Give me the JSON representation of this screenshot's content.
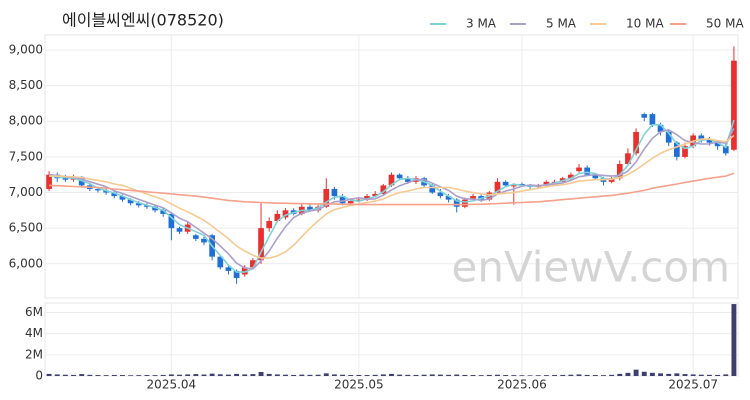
{
  "chart_data": {
    "type": "candlestick",
    "title": "에이블씨엔씨(078520)",
    "watermark": "enViewV.com",
    "categories": [
      null,
      null,
      null,
      null,
      null,
      null,
      null,
      null,
      null,
      null,
      null,
      null,
      null,
      null,
      null,
      "2025.04",
      null,
      null,
      null,
      null,
      null,
      null,
      null,
      null,
      null,
      null,
      null,
      null,
      null,
      null,
      null,
      null,
      null,
      null,
      null,
      null,
      null,
      null,
      "2025.05",
      null,
      null,
      null,
      null,
      null,
      null,
      null,
      null,
      null,
      null,
      null,
      null,
      null,
      null,
      null,
      null,
      null,
      null,
      null,
      "2025.06",
      null,
      null,
      null,
      null,
      null,
      null,
      null,
      null,
      null,
      null,
      null,
      null,
      null,
      null,
      null,
      null,
      null,
      null,
      null,
      null,
      "2025.07",
      null,
      null,
      null,
      null,
      null
    ],
    "open": [
      7050,
      7250,
      7200,
      7180,
      7220,
      7100,
      7050,
      7030,
      7000,
      6950,
      6900,
      6850,
      6820,
      6800,
      6750,
      6700,
      6500,
      6450,
      6400,
      6350,
      6400,
      6100,
      5950,
      5900,
      5850,
      5950,
      6050,
      6500,
      6600,
      6650,
      6750,
      6700,
      6800,
      6750,
      6800,
      7050,
      6950,
      6850,
      6880,
      6900,
      6950,
      6980,
      7100,
      7250,
      7200,
      7150,
      7200,
      7100,
      7000,
      6950,
      6900,
      6800,
      6900,
      6950,
      6900,
      7000,
      7150,
      7100,
      7120,
      7100,
      7080,
      7100,
      7150,
      7150,
      7200,
      7300,
      7350,
      7250,
      7200,
      7150,
      7200,
      7400,
      7550,
      8100,
      8100,
      7950,
      7850,
      7700,
      7500,
      7650,
      7800,
      7750,
      7700,
      7650,
      7600
    ],
    "high": [
      7300,
      7280,
      7250,
      7250,
      7230,
      7120,
      7080,
      7060,
      7020,
      6970,
      6920,
      6880,
      6850,
      6820,
      6780,
      6720,
      6520,
      6600,
      6420,
      6380,
      6420,
      6120,
      5980,
      5920,
      5980,
      6080,
      6850,
      6650,
      6750,
      6780,
      6780,
      6850,
      6830,
      6830,
      7200,
      7080,
      6980,
      6920,
      6930,
      6980,
      7020,
      7120,
      7280,
      7270,
      7230,
      7230,
      7220,
      7120,
      7050,
      6980,
      6920,
      6930,
      6980,
      6970,
      7020,
      7200,
      7170,
      7130,
      7140,
      7120,
      7120,
      7170,
      7180,
      7220,
      7280,
      7400,
      7380,
      7270,
      7220,
      7230,
      7450,
      7620,
      7900,
      8120,
      8120,
      7980,
      7880,
      7720,
      7700,
      7830,
      7830,
      7780,
      7730,
      7680,
      9050
    ],
    "low": [
      7020,
      7150,
      7150,
      7150,
      7080,
      7020,
      7000,
      6970,
      6920,
      6870,
      6820,
      6790,
      6770,
      6720,
      6660,
      6330,
      6420,
      6420,
      6320,
      6260,
      6050,
      5920,
      5850,
      5720,
      5820,
      5920,
      6000,
      6450,
      6580,
      6620,
      6680,
      6680,
      6730,
      6720,
      6780,
      6900,
      6820,
      6830,
      6860,
      6880,
      6930,
      6950,
      7080,
      7170,
      7120,
      7120,
      7080,
      6980,
      6920,
      6860,
      6720,
      6780,
      6880,
      6870,
      6880,
      6980,
      7080,
      6830,
      7080,
      7050,
      7060,
      7080,
      7120,
      7130,
      7180,
      7280,
      7230,
      7170,
      7100,
      7130,
      7170,
      7380,
      7520,
      8000,
      7920,
      7800,
      7650,
      7450,
      7480,
      7620,
      7700,
      7660,
      7600,
      7520,
      7580
    ],
    "close": [
      7250,
      7200,
      7180,
      7220,
      7100,
      7050,
      7030,
      7000,
      6950,
      6900,
      6850,
      6820,
      6800,
      6750,
      6700,
      6500,
      6450,
      6550,
      6350,
      6300,
      6100,
      5950,
      5900,
      5800,
      5950,
      6050,
      6500,
      6600,
      6700,
      6750,
      6700,
      6800,
      6750,
      6800,
      7050,
      6950,
      6850,
      6880,
      6900,
      6950,
      6980,
      7100,
      7250,
      7200,
      7150,
      7200,
      7100,
      7000,
      6950,
      6900,
      6800,
      6900,
      6950,
      6900,
      7000,
      7150,
      7100,
      7100,
      7100,
      7080,
      7100,
      7150,
      7150,
      7200,
      7250,
      7350,
      7250,
      7200,
      7150,
      7200,
      7400,
      7550,
      7850,
      8050,
      7950,
      7850,
      7700,
      7500,
      7650,
      7800,
      7750,
      7700,
      7650,
      7550,
      8850
    ],
    "up_color": "#e8302e",
    "down_color": "#1f6fd6",
    "series": [
      {
        "name": "3 MA",
        "color": "#7fd3d8",
        "values": [
          7230,
          7220,
          7210,
          7200,
          7167,
          7123,
          7060,
          7027,
          6993,
          6950,
          6900,
          6857,
          6823,
          6790,
          6750,
          6650,
          6550,
          6500,
          6450,
          6400,
          6250,
          6117,
          5983,
          5883,
          5883,
          5933,
          6167,
          6383,
          6600,
          6683,
          6717,
          6750,
          6750,
          6783,
          6867,
          6933,
          6950,
          6893,
          6877,
          6910,
          6943,
          7010,
          7110,
          7183,
          7200,
          7183,
          7150,
          7100,
          7017,
          6950,
          6883,
          6867,
          6883,
          6917,
          6950,
          7017,
          7083,
          7117,
          7100,
          7093,
          7093,
          7110,
          7133,
          7167,
          7200,
          7267,
          7283,
          7267,
          7200,
          7183,
          7250,
          7383,
          7600,
          7817,
          7950,
          7950,
          7833,
          7683,
          7617,
          7650,
          7733,
          7750,
          7700,
          7633,
          8017
        ]
      },
      {
        "name": "5 MA",
        "color": "#ab9fcb",
        "values": [
          7250,
          7240,
          7220,
          7210,
          7190,
          7150,
          7116,
          7080,
          7026,
          6986,
          6946,
          6904,
          6864,
          6824,
          6784,
          6714,
          6640,
          6590,
          6510,
          6430,
          6350,
          6250,
          6140,
          6010,
          5940,
          5930,
          6040,
          6180,
          6360,
          6520,
          6650,
          6710,
          6740,
          6760,
          6820,
          6870,
          6880,
          6906,
          6926,
          6906,
          6912,
          6962,
          7036,
          7096,
          7136,
          7180,
          7180,
          7130,
          7080,
          7030,
          6950,
          6910,
          6910,
          6890,
          6910,
          6980,
          7020,
          7050,
          7090,
          7106,
          7096,
          7106,
          7116,
          7136,
          7170,
          7220,
          7240,
          7250,
          7240,
          7230,
          7240,
          7300,
          7430,
          7610,
          7760,
          7850,
          7880,
          7810,
          7730,
          7700,
          7680,
          7680,
          7710,
          7690,
          7900
        ]
      },
      {
        "name": "10 MA",
        "color": "#f6c993",
        "values": [
          7230,
          7230,
          7225,
          7220,
          7210,
          7190,
          7170,
          7150,
          7120,
          7100,
          7060,
          7020,
          6980,
          6940,
          6900,
          6840,
          6780,
          6730,
          6670,
          6610,
          6530,
          6440,
          6350,
          6250,
          6180,
          6120,
          6080,
          6080,
          6110,
          6170,
          6260,
          6380,
          6500,
          6600,
          6700,
          6760,
          6790,
          6820,
          6840,
          6860,
          6880,
          6910,
          6960,
          7000,
          7020,
          7050,
          7070,
          7070,
          7070,
          7070,
          7050,
          7020,
          7000,
          6980,
          6970,
          6980,
          6990,
          7000,
          7020,
          7040,
          7060,
          7080,
          7100,
          7110,
          7130,
          7160,
          7170,
          7180,
          7180,
          7190,
          7210,
          7250,
          7320,
          7400,
          7480,
          7550,
          7600,
          7640,
          7680,
          7720,
          7750,
          7750,
          7730,
          7710,
          7800
        ]
      },
      {
        "name": "50 MA",
        "color": "#f5a18b",
        "values": [
          7100,
          7095,
          7090,
          7085,
          7080,
          7075,
          7070,
          7060,
          7050,
          7040,
          7030,
          7020,
          7010,
          7000,
          6990,
          6980,
          6970,
          6960,
          6950,
          6935,
          6920,
          6905,
          6890,
          6880,
          6870,
          6865,
          6860,
          6855,
          6850,
          6850,
          6845,
          6845,
          6840,
          6840,
          6840,
          6840,
          6835,
          6835,
          6830,
          6830,
          6830,
          6830,
          6830,
          6830,
          6830,
          6830,
          6830,
          6830,
          6830,
          6830,
          6830,
          6830,
          6835,
          6835,
          6840,
          6845,
          6850,
          6855,
          6860,
          6865,
          6870,
          6880,
          6890,
          6900,
          6910,
          6920,
          6930,
          6940,
          6950,
          6960,
          6975,
          6990,
          7010,
          7030,
          7060,
          7080,
          7100,
          7120,
          7140,
          7160,
          7180,
          7200,
          7215,
          7230,
          7270
        ]
      }
    ],
    "ylim": [
      5520,
      9210
    ],
    "yticks": [
      {
        "value": 6000,
        "label": "6,000"
      },
      {
        "value": 6500,
        "label": "6,500"
      },
      {
        "value": 7000,
        "label": "7,000"
      },
      {
        "value": 7500,
        "label": "7,500"
      },
      {
        "value": 8000,
        "label": "8,000"
      },
      {
        "value": 8500,
        "label": "8,500"
      },
      {
        "value": 9000,
        "label": "9,000"
      }
    ],
    "grid": true,
    "volume": {
      "color": "#3e3f6e",
      "values": [
        200000,
        150000,
        120000,
        100000,
        180000,
        110000,
        90000,
        80000,
        100000,
        90000,
        70000,
        80000,
        90000,
        80000,
        100000,
        150000,
        120000,
        150000,
        180000,
        140000,
        220000,
        160000,
        130000,
        200000,
        150000,
        180000,
        380000,
        200000,
        150000,
        120000,
        100000,
        130000,
        110000,
        120000,
        250000,
        150000,
        120000,
        90000,
        100000,
        90000,
        110000,
        150000,
        200000,
        130000,
        110000,
        100000,
        120000,
        150000,
        130000,
        110000,
        140000,
        100000,
        90000,
        80000,
        100000,
        120000,
        90000,
        80000,
        70000,
        60000,
        70000,
        80000,
        90000,
        100000,
        120000,
        150000,
        100000,
        90000,
        80000,
        110000,
        200000,
        300000,
        600000,
        400000,
        300000,
        250000,
        200000,
        250000,
        180000,
        150000,
        120000,
        110000,
        100000,
        150000,
        6800000
      ],
      "ylim": [
        0,
        6900000
      ],
      "yticks": [
        0,
        {
          "value": 2000000,
          "label": "2M"
        },
        {
          "value": 4000000,
          "label": "4M"
        },
        {
          "value": 6000000,
          "label": "6M"
        }
      ]
    }
  }
}
